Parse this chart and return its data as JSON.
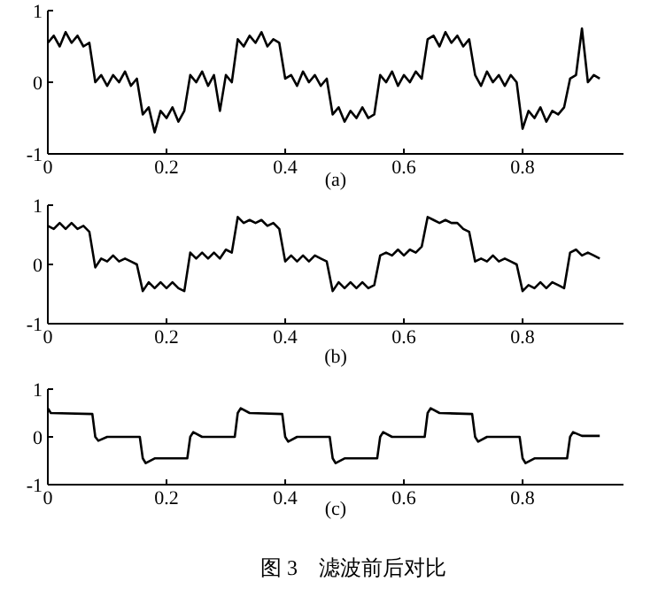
{
  "chart_data": [
    {
      "type": "line",
      "xlabel": "(a)",
      "color": "#000000",
      "xlim": [
        0,
        0.97
      ],
      "ylim": [
        -1,
        1
      ],
      "xticks": [
        0,
        0.2,
        0.4,
        0.6,
        0.8
      ],
      "yticks": [
        -1,
        0,
        1
      ],
      "x": [
        0,
        0.01,
        0.02,
        0.03,
        0.04,
        0.05,
        0.06,
        0.07,
        0.08,
        0.09,
        0.1,
        0.11,
        0.12,
        0.13,
        0.14,
        0.15,
        0.16,
        0.17,
        0.18,
        0.19,
        0.2,
        0.21,
        0.22,
        0.23,
        0.24,
        0.25,
        0.26,
        0.27,
        0.28,
        0.29,
        0.3,
        0.31,
        0.32,
        0.33,
        0.34,
        0.35,
        0.36,
        0.37,
        0.38,
        0.39,
        0.4,
        0.41,
        0.42,
        0.43,
        0.44,
        0.45,
        0.46,
        0.47,
        0.48,
        0.49,
        0.5,
        0.51,
        0.52,
        0.53,
        0.54,
        0.55,
        0.56,
        0.57,
        0.58,
        0.59,
        0.6,
        0.61,
        0.62,
        0.63,
        0.64,
        0.65,
        0.66,
        0.67,
        0.68,
        0.69,
        0.7,
        0.71,
        0.72,
        0.73,
        0.74,
        0.75,
        0.76,
        0.77,
        0.78,
        0.79,
        0.8,
        0.81,
        0.82,
        0.83,
        0.84,
        0.85,
        0.86,
        0.87,
        0.88,
        0.89,
        0.9,
        0.91,
        0.92,
        0.93
      ],
      "values": [
        0.55,
        0.65,
        0.5,
        0.7,
        0.55,
        0.65,
        0.5,
        0.55,
        0.0,
        0.1,
        -0.05,
        0.1,
        0.0,
        0.15,
        -0.05,
        0.05,
        -0.45,
        -0.35,
        -0.7,
        -0.4,
        -0.5,
        -0.35,
        -0.55,
        -0.4,
        0.1,
        0.0,
        0.15,
        -0.05,
        0.1,
        -0.4,
        0.1,
        0.0,
        0.6,
        0.5,
        0.65,
        0.55,
        0.7,
        0.5,
        0.6,
        0.55,
        0.05,
        0.1,
        -0.05,
        0.15,
        0.0,
        0.1,
        -0.05,
        0.05,
        -0.45,
        -0.35,
        -0.55,
        -0.4,
        -0.5,
        -0.35,
        -0.5,
        -0.45,
        0.1,
        0.0,
        0.15,
        -0.05,
        0.1,
        0.0,
        0.15,
        0.05,
        0.6,
        0.65,
        0.5,
        0.7,
        0.55,
        0.65,
        0.5,
        0.6,
        0.1,
        -0.05,
        0.15,
        0.0,
        0.1,
        -0.05,
        0.1,
        0.0,
        -0.65,
        -0.4,
        -0.5,
        -0.35,
        -0.55,
        -0.4,
        -0.45,
        -0.35,
        0.05,
        0.1,
        0.75,
        0.0,
        0.1,
        0.05
      ]
    },
    {
      "type": "line",
      "xlabel": "(b)",
      "color": "#000000",
      "xlim": [
        0,
        0.97
      ],
      "ylim": [
        -1,
        1
      ],
      "xticks": [
        0,
        0.2,
        0.4,
        0.6,
        0.8
      ],
      "yticks": [
        -1,
        0,
        1
      ],
      "x": [
        0,
        0.01,
        0.02,
        0.03,
        0.04,
        0.05,
        0.06,
        0.07,
        0.08,
        0.09,
        0.1,
        0.11,
        0.12,
        0.13,
        0.14,
        0.15,
        0.16,
        0.17,
        0.18,
        0.19,
        0.2,
        0.21,
        0.22,
        0.23,
        0.24,
        0.25,
        0.26,
        0.27,
        0.28,
        0.29,
        0.3,
        0.31,
        0.32,
        0.33,
        0.34,
        0.35,
        0.36,
        0.37,
        0.38,
        0.39,
        0.4,
        0.41,
        0.42,
        0.43,
        0.44,
        0.45,
        0.46,
        0.47,
        0.48,
        0.49,
        0.5,
        0.51,
        0.52,
        0.53,
        0.54,
        0.55,
        0.56,
        0.57,
        0.58,
        0.59,
        0.6,
        0.61,
        0.62,
        0.63,
        0.64,
        0.65,
        0.66,
        0.67,
        0.68,
        0.69,
        0.7,
        0.71,
        0.72,
        0.73,
        0.74,
        0.75,
        0.76,
        0.77,
        0.78,
        0.79,
        0.8,
        0.81,
        0.82,
        0.83,
        0.84,
        0.85,
        0.86,
        0.87,
        0.88,
        0.89,
        0.9,
        0.91,
        0.92,
        0.93
      ],
      "values": [
        0.65,
        0.6,
        0.7,
        0.6,
        0.7,
        0.6,
        0.65,
        0.55,
        -0.05,
        0.1,
        0.05,
        0.15,
        0.05,
        0.1,
        0.05,
        0.0,
        -0.45,
        -0.3,
        -0.4,
        -0.3,
        -0.4,
        -0.3,
        -0.4,
        -0.45,
        0.2,
        0.1,
        0.2,
        0.1,
        0.2,
        0.1,
        0.25,
        0.2,
        0.8,
        0.7,
        0.75,
        0.7,
        0.75,
        0.65,
        0.7,
        0.6,
        0.05,
        0.15,
        0.05,
        0.15,
        0.05,
        0.15,
        0.1,
        0.05,
        -0.45,
        -0.3,
        -0.4,
        -0.3,
        -0.4,
        -0.3,
        -0.4,
        -0.35,
        0.15,
        0.2,
        0.15,
        0.25,
        0.15,
        0.25,
        0.2,
        0.3,
        0.8,
        0.75,
        0.7,
        0.75,
        0.7,
        0.7,
        0.6,
        0.55,
        0.05,
        0.1,
        0.05,
        0.15,
        0.05,
        0.1,
        0.05,
        0.0,
        -0.45,
        -0.35,
        -0.4,
        -0.3,
        -0.4,
        -0.3,
        -0.35,
        -0.4,
        0.2,
        0.25,
        0.15,
        0.2,
        0.15,
        0.1
      ]
    },
    {
      "type": "line",
      "xlabel": "(c)",
      "color": "#000000",
      "xlim": [
        0,
        0.97
      ],
      "ylim": [
        -1,
        1
      ],
      "xticks": [
        0,
        0.2,
        0.4,
        0.6,
        0.8
      ],
      "yticks": [
        -1,
        0,
        1
      ],
      "annotations": [
        "图 3　滤波前后对比"
      ],
      "x": [
        0,
        0.005,
        0.075,
        0.08,
        0.085,
        0.1,
        0.155,
        0.16,
        0.165,
        0.18,
        0.235,
        0.24,
        0.245,
        0.26,
        0.315,
        0.32,
        0.325,
        0.34,
        0.395,
        0.4,
        0.405,
        0.42,
        0.475,
        0.48,
        0.485,
        0.5,
        0.555,
        0.56,
        0.565,
        0.58,
        0.635,
        0.64,
        0.645,
        0.66,
        0.715,
        0.72,
        0.725,
        0.74,
        0.795,
        0.8,
        0.805,
        0.82,
        0.875,
        0.88,
        0.885,
        0.9,
        0.93
      ],
      "values": [
        0.6,
        0.5,
        0.48,
        0.0,
        -0.08,
        0.0,
        0.0,
        -0.45,
        -0.55,
        -0.45,
        -0.45,
        0.0,
        0.1,
        0.0,
        0.0,
        0.5,
        0.6,
        0.5,
        0.48,
        0.0,
        -0.1,
        0.0,
        0.0,
        -0.45,
        -0.55,
        -0.45,
        -0.45,
        0.0,
        0.1,
        0.0,
        0.0,
        0.5,
        0.6,
        0.5,
        0.48,
        0.0,
        -0.1,
        0.0,
        0.0,
        -0.45,
        -0.55,
        -0.45,
        -0.45,
        0.0,
        0.1,
        0.02,
        0.02
      ]
    }
  ]
}
